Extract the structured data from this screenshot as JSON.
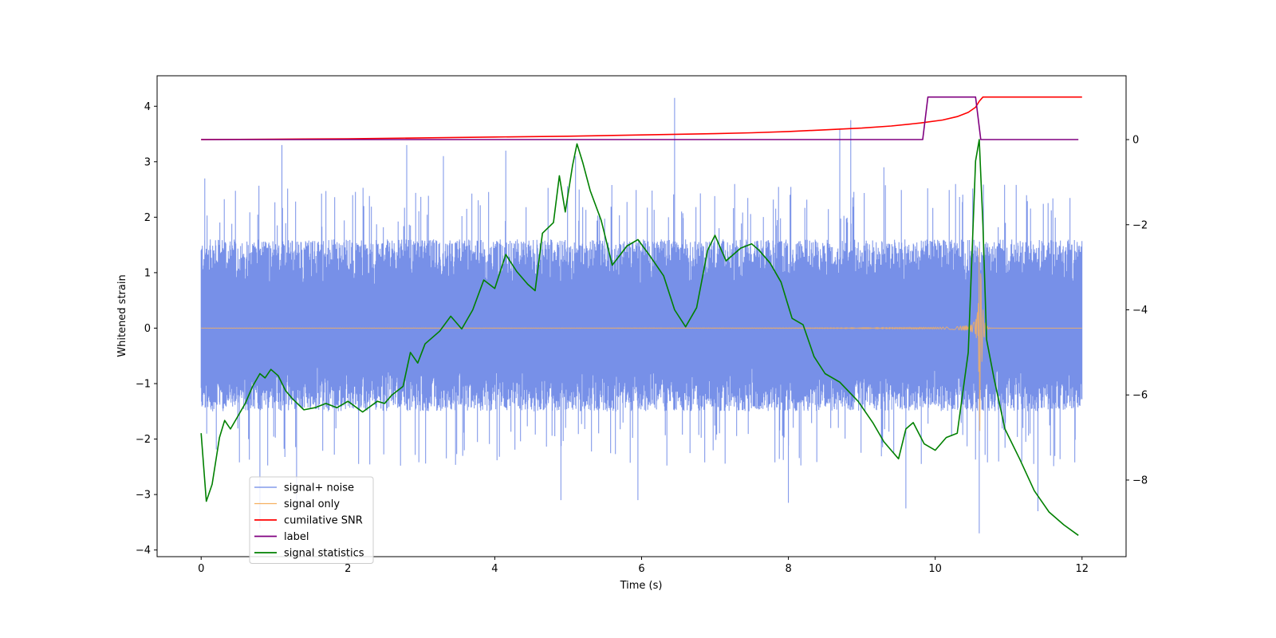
{
  "chart_data": {
    "type": "line",
    "title": "",
    "xlabel": "Time (s)",
    "ylabel": "Whitened strain",
    "ylabel_right": "",
    "xlim": [
      -0.6,
      12.6
    ],
    "ylim": [
      -4.12,
      4.55
    ],
    "ylim_right": [
      -9.8,
      1.5
    ],
    "grid": false,
    "legend_position": "lower-left",
    "x_ticks": [
      0,
      2,
      4,
      6,
      8,
      10,
      12
    ],
    "y_ticks": [
      -4,
      -3,
      -2,
      -1,
      0,
      1,
      2,
      3,
      4
    ],
    "y_ticks_right": [
      -8,
      -6,
      -4,
      -2,
      0
    ],
    "x_tick_labels": [
      "0",
      "2",
      "4",
      "6",
      "8",
      "10",
      "12"
    ],
    "y_tick_labels": [
      "−4",
      "−3",
      "−2",
      "−1",
      "0",
      "1",
      "2",
      "3",
      "4"
    ],
    "y_tick_labels_right": [
      "−8",
      "−6",
      "−4",
      "−2",
      "0"
    ],
    "series": [
      {
        "name": "signal+ noise",
        "axis": "left",
        "color": "#6b87e6",
        "style": "noise",
        "x_range": [
          0,
          12
        ],
        "band_upper": 1.6,
        "band_lower": -1.5,
        "spikes": [
          [
            0.05,
            2.7
          ],
          [
            1.1,
            3.3
          ],
          [
            2.8,
            3.3
          ],
          [
            3.3,
            3.1
          ],
          [
            4.15,
            3.2
          ],
          [
            5.1,
            3.1
          ],
          [
            6.45,
            4.15
          ],
          [
            8.7,
            3.6
          ],
          [
            8.85,
            3.75
          ],
          [
            9.3,
            2.9
          ],
          [
            0.8,
            -3.6
          ],
          [
            1.3,
            -3.3
          ],
          [
            4.9,
            -3.1
          ],
          [
            5.95,
            -3.1
          ],
          [
            8.0,
            -3.15
          ],
          [
            9.6,
            -3.25
          ],
          [
            10.6,
            -3.7
          ],
          [
            11.4,
            -3.3
          ]
        ]
      },
      {
        "name": "signal only",
        "axis": "left",
        "color": "#f5b060",
        "style": "chirp",
        "x_range": [
          0,
          12
        ],
        "merger_time": 10.6,
        "peak_amplitude": 2.7
      },
      {
        "name": "cumilative SNR",
        "axis": "right",
        "color": "#ff0000",
        "x": [
          0,
          1,
          2,
          3,
          4,
          5,
          6,
          7,
          7.5,
          8,
          8.5,
          9,
          9.4,
          9.8,
          10.1,
          10.3,
          10.45,
          10.55,
          10.6,
          10.65,
          10.8,
          12
        ],
        "y": [
          0,
          0.01,
          0.02,
          0.04,
          0.06,
          0.08,
          0.11,
          0.14,
          0.16,
          0.19,
          0.23,
          0.27,
          0.32,
          0.39,
          0.46,
          0.54,
          0.64,
          0.76,
          0.9,
          1.0,
          1.0,
          1.0
        ]
      },
      {
        "name": "label",
        "axis": "right",
        "color": "#800080",
        "x": [
          0,
          9.83,
          9.9,
          10.55,
          10.62,
          11.95
        ],
        "y": [
          0,
          0,
          1,
          1,
          0,
          0
        ]
      },
      {
        "name": "signal statistics",
        "axis": "right",
        "color": "#008000",
        "x": [
          0,
          0.07,
          0.15,
          0.25,
          0.32,
          0.4,
          0.5,
          0.6,
          0.7,
          0.8,
          0.87,
          0.95,
          1.05,
          1.15,
          1.25,
          1.4,
          1.55,
          1.7,
          1.85,
          2.0,
          2.2,
          2.4,
          2.5,
          2.6,
          2.75,
          2.85,
          2.95,
          3.05,
          3.25,
          3.4,
          3.55,
          3.7,
          3.85,
          4.0,
          4.15,
          4.3,
          4.45,
          4.55,
          4.65,
          4.8,
          4.88,
          4.96,
          5.06,
          5.12,
          5.2,
          5.3,
          5.45,
          5.6,
          5.8,
          5.95,
          6.1,
          6.3,
          6.45,
          6.6,
          6.75,
          6.9,
          7.0,
          7.15,
          7.35,
          7.5,
          7.6,
          7.75,
          7.9,
          8.05,
          8.2,
          8.35,
          8.5,
          8.7,
          8.95,
          9.15,
          9.3,
          9.4,
          9.5,
          9.6,
          9.7,
          9.85,
          10.0,
          10.15,
          10.3,
          10.45,
          10.55,
          10.6,
          10.65,
          10.7,
          10.8,
          10.95,
          11.15,
          11.35,
          11.55,
          11.75,
          11.95
        ],
        "y": [
          -6.9,
          -8.5,
          -8.1,
          -7.0,
          -6.6,
          -6.8,
          -6.5,
          -6.2,
          -5.8,
          -5.5,
          -5.6,
          -5.4,
          -5.55,
          -5.9,
          -6.1,
          -6.35,
          -6.3,
          -6.2,
          -6.3,
          -6.15,
          -6.4,
          -6.15,
          -6.2,
          -6.0,
          -5.8,
          -5.0,
          -5.25,
          -4.8,
          -4.5,
          -4.15,
          -4.45,
          -4.0,
          -3.3,
          -3.5,
          -2.7,
          -3.1,
          -3.4,
          -3.55,
          -2.2,
          -1.95,
          -0.85,
          -1.7,
          -0.6,
          -0.1,
          -0.55,
          -1.2,
          -1.9,
          -2.95,
          -2.5,
          -2.35,
          -2.7,
          -3.2,
          -4.0,
          -4.4,
          -3.95,
          -2.6,
          -2.25,
          -2.85,
          -2.55,
          -2.45,
          -2.6,
          -2.9,
          -3.35,
          -4.2,
          -4.35,
          -5.1,
          -5.5,
          -5.7,
          -6.15,
          -6.65,
          -7.1,
          -7.3,
          -7.5,
          -6.8,
          -6.65,
          -7.15,
          -7.3,
          -7.0,
          -6.9,
          -5.0,
          -0.5,
          0.0,
          -2.0,
          -4.7,
          -5.6,
          -6.8,
          -7.5,
          -8.25,
          -8.75,
          -9.05,
          -9.3
        ]
      }
    ]
  }
}
